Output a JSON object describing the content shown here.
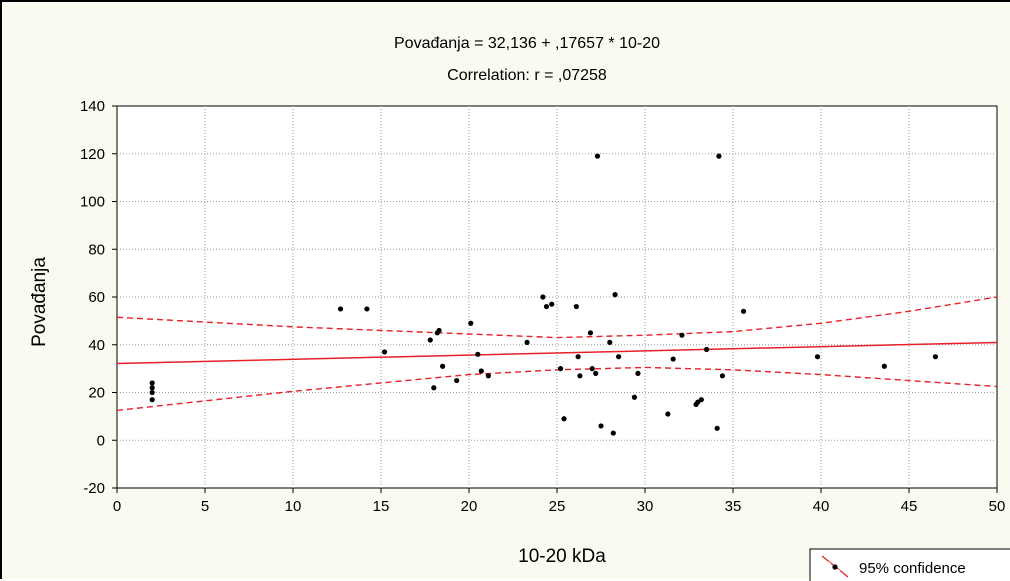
{
  "chart_data": {
    "type": "scatter",
    "title": "Povađanja = 32,136 + ,17657 * 10-20",
    "subtitle": "Correlation: r = ,07258",
    "xlabel": "10-20 kDa",
    "ylabel": "Povađanja",
    "xlim": [
      0,
      50
    ],
    "ylim": [
      -20,
      140
    ],
    "xticks": [
      "0",
      "5",
      "10",
      "15",
      "20",
      "25",
      "30",
      "35",
      "40",
      "45",
      "50"
    ],
    "yticks": [
      "-20",
      "0",
      "20",
      "40",
      "60",
      "80",
      "100",
      "120",
      "140"
    ],
    "grid": true,
    "regression": {
      "intercept": 32.136,
      "slope": 0.17657
    },
    "confidence_band": {
      "x": [
        0,
        5,
        10,
        15,
        20,
        25,
        30,
        35,
        40,
        45,
        50
      ],
      "lower": [
        12.5,
        16.5,
        20.5,
        24,
        27.5,
        29.5,
        30.5,
        29.5,
        27.5,
        25,
        22.5
      ],
      "upper": [
        51.5,
        49.5,
        47.5,
        46,
        44.5,
        43,
        44,
        45.5,
        49,
        54,
        60
      ]
    },
    "legend": {
      "label": "95% confidence",
      "position": "bottom-right"
    },
    "colors": {
      "fit": "#e8202a",
      "points": "#000000",
      "frame_bg": "#fbfaf0",
      "plot_bg": "#ffffff"
    },
    "points": [
      {
        "x": 2,
        "y": 17
      },
      {
        "x": 2,
        "y": 20
      },
      {
        "x": 2,
        "y": 22
      },
      {
        "x": 2,
        "y": 24
      },
      {
        "x": 12.7,
        "y": 55
      },
      {
        "x": 14.2,
        "y": 55
      },
      {
        "x": 15.2,
        "y": 37
      },
      {
        "x": 17.8,
        "y": 42
      },
      {
        "x": 18,
        "y": 22
      },
      {
        "x": 18.2,
        "y": 45
      },
      {
        "x": 18.3,
        "y": 46
      },
      {
        "x": 18.5,
        "y": 31
      },
      {
        "x": 19.3,
        "y": 25
      },
      {
        "x": 20.1,
        "y": 49
      },
      {
        "x": 20.5,
        "y": 36
      },
      {
        "x": 20.7,
        "y": 29
      },
      {
        "x": 21.1,
        "y": 27
      },
      {
        "x": 23.3,
        "y": 41
      },
      {
        "x": 24.2,
        "y": 60
      },
      {
        "x": 24.4,
        "y": 56
      },
      {
        "x": 24.7,
        "y": 57
      },
      {
        "x": 25.2,
        "y": 30
      },
      {
        "x": 25.4,
        "y": 9
      },
      {
        "x": 26.1,
        "y": 56
      },
      {
        "x": 26.2,
        "y": 35
      },
      {
        "x": 26.3,
        "y": 27
      },
      {
        "x": 26.9,
        "y": 45
      },
      {
        "x": 27,
        "y": 30
      },
      {
        "x": 27.2,
        "y": 28
      },
      {
        "x": 27.3,
        "y": 119
      },
      {
        "x": 27.5,
        "y": 6
      },
      {
        "x": 28,
        "y": 41
      },
      {
        "x": 28.2,
        "y": 3
      },
      {
        "x": 28.3,
        "y": 61
      },
      {
        "x": 28.5,
        "y": 35
      },
      {
        "x": 29.4,
        "y": 18
      },
      {
        "x": 29.6,
        "y": 28
      },
      {
        "x": 31.3,
        "y": 11
      },
      {
        "x": 31.6,
        "y": 34
      },
      {
        "x": 32.1,
        "y": 44
      },
      {
        "x": 32.9,
        "y": 15
      },
      {
        "x": 33,
        "y": 16
      },
      {
        "x": 33.2,
        "y": 17
      },
      {
        "x": 33.5,
        "y": 38
      },
      {
        "x": 34.1,
        "y": 5
      },
      {
        "x": 34.2,
        "y": 119
      },
      {
        "x": 34.4,
        "y": 27
      },
      {
        "x": 35.6,
        "y": 54
      },
      {
        "x": 39.8,
        "y": 35
      },
      {
        "x": 43.6,
        "y": 31
      },
      {
        "x": 46.5,
        "y": 35
      }
    ]
  }
}
